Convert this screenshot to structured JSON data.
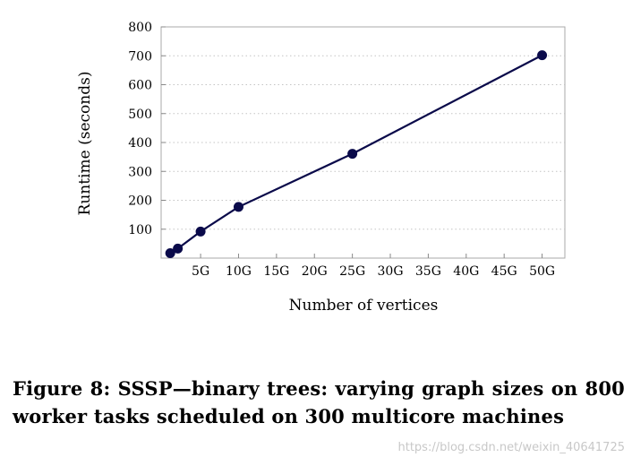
{
  "chart_data": {
    "type": "line",
    "xlabel": "Number of vertices",
    "ylabel": "Runtime (seconds)",
    "xlim": [
      -0.2,
      53
    ],
    "ylim": [
      0,
      800
    ],
    "x_ticks": [
      5,
      10,
      15,
      20,
      25,
      30,
      35,
      40,
      45,
      50
    ],
    "x_tick_labels": [
      "5G",
      "10G",
      "15G",
      "20G",
      "25G",
      "30G",
      "35G",
      "40G",
      "45G",
      "50G"
    ],
    "y_ticks": [
      100,
      200,
      300,
      400,
      500,
      600,
      700,
      800
    ],
    "y_tick_labels": [
      "100",
      "200",
      "300",
      "400",
      "500",
      "600",
      "700",
      "800"
    ],
    "grid": "horizontal-dotted",
    "series": [
      {
        "color": "#0a0a4a",
        "points": [
          {
            "x": 1,
            "y": 17
          },
          {
            "x": 2,
            "y": 33
          },
          {
            "x": 5,
            "y": 92
          },
          {
            "x": 10,
            "y": 177
          },
          {
            "x": 25,
            "y": 361
          },
          {
            "x": 50,
            "y": 702
          }
        ]
      }
    ]
  },
  "caption": "Figure 8: SSSP—binary trees: varying graph sizes on 800 worker tasks scheduled on 300 multicore machines",
  "watermark": "https://blog.csdn.net/weixin_40641725"
}
